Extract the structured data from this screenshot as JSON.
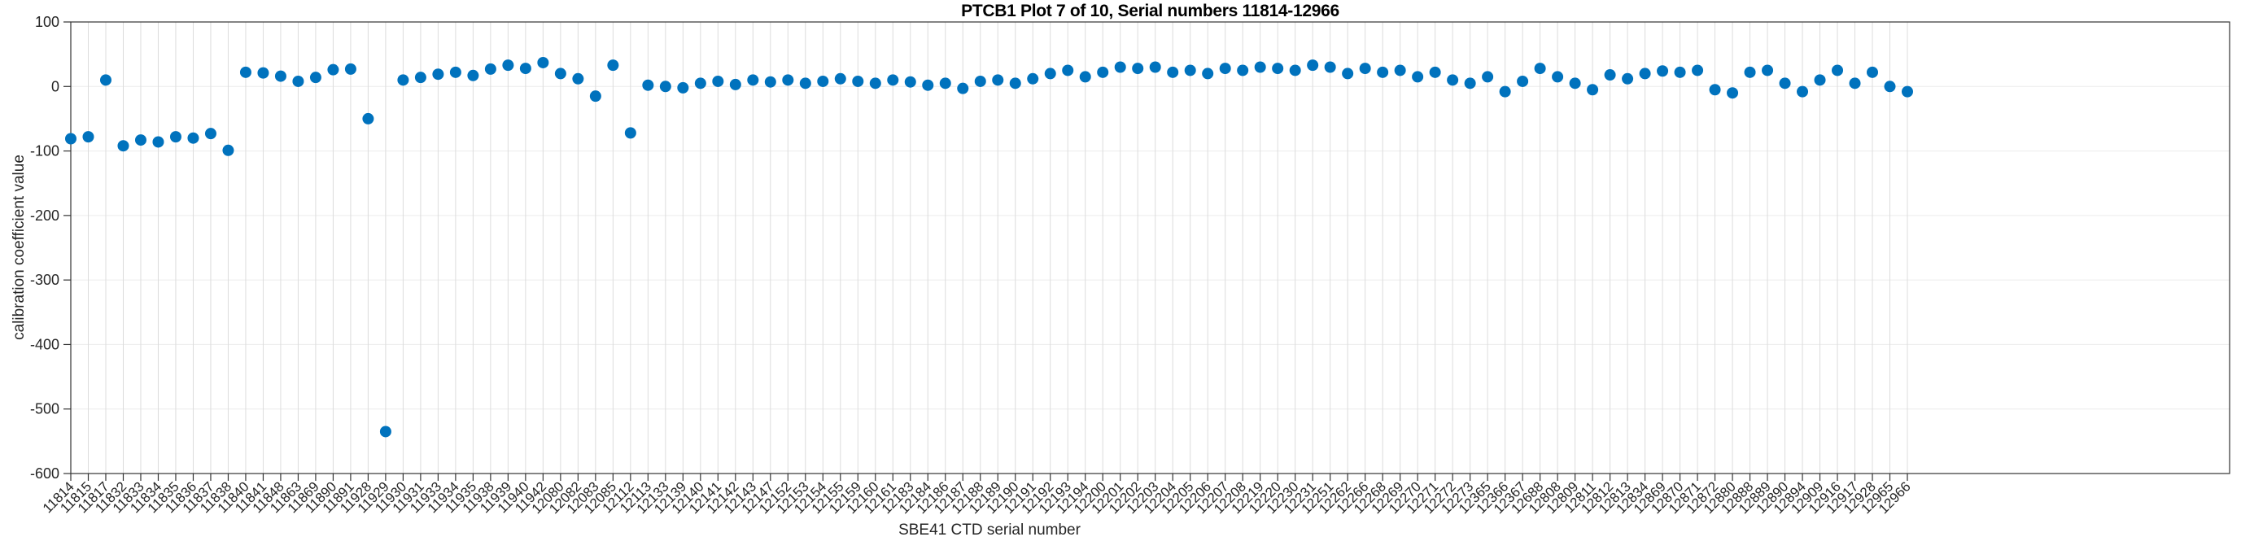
{
  "title": "PTCB1 Plot 7 of 10, Serial numbers 11814-12966",
  "chart_data": {
    "type": "scatter",
    "title": "PTCB1 Plot 7 of 10, Serial numbers 11814-12966",
    "xlabel": "SBE41 CTD serial number",
    "ylabel": "calibration coefficient value",
    "ylim": [
      -600,
      100
    ],
    "yticks": [
      100,
      0,
      -100,
      -200,
      -300,
      -400,
      -500,
      -600
    ],
    "grid": "on",
    "legend": "none",
    "marker_color": "#0072BD",
    "grid_color": "#dcdcdc",
    "axis_color": "#333333",
    "tick_text_color": "#262626",
    "categories": [
      "11814",
      "11815",
      "11817",
      "11832",
      "11833",
      "11834",
      "11835",
      "11836",
      "11837",
      "11838",
      "11840",
      "11841",
      "11848",
      "11863",
      "11869",
      "11890",
      "11891",
      "11928",
      "11929",
      "11930",
      "11931",
      "11933",
      "11934",
      "11935",
      "11938",
      "11939",
      "11940",
      "11942",
      "12080",
      "12082",
      "12083",
      "12085",
      "12112",
      "12113",
      "12133",
      "12139",
      "12140",
      "12141",
      "12142",
      "12143",
      "12147",
      "12152",
      "12153",
      "12154",
      "12155",
      "12159",
      "12160",
      "12161",
      "12183",
      "12184",
      "12186",
      "12187",
      "12188",
      "12189",
      "12190",
      "12191",
      "12192",
      "12193",
      "12194",
      "12200",
      "12201",
      "12202",
      "12203",
      "12204",
      "12205",
      "12206",
      "12207",
      "12208",
      "12219",
      "12220",
      "12230",
      "12231",
      "12251",
      "12262",
      "12266",
      "12268",
      "12269",
      "12270",
      "12271",
      "12272",
      "12273",
      "12365",
      "12366",
      "12367",
      "12688",
      "12808",
      "12809",
      "12811",
      "12812",
      "12813",
      "12834",
      "12869",
      "12870",
      "12871",
      "12872",
      "12880",
      "12888",
      "12889",
      "12890",
      "12894",
      "12909",
      "12916",
      "12917",
      "12928",
      "12965",
      "12966"
    ],
    "values": [
      -81,
      -78,
      10,
      -92,
      -83,
      -86,
      -78,
      -80,
      -73,
      -99,
      22,
      21,
      16,
      8,
      14,
      26,
      27,
      -50,
      -535,
      10,
      14,
      19,
      22,
      17,
      27,
      33,
      28,
      37,
      20,
      12,
      -15,
      33,
      -72,
      2,
      0,
      -2,
      5,
      8,
      3,
      10,
      7,
      10,
      5,
      8,
      12,
      8,
      5,
      10,
      7,
      2,
      5,
      -3,
      8,
      10,
      5,
      12,
      20,
      25,
      15,
      22,
      30,
      28,
      30,
      22,
      25,
      20,
      28,
      25,
      30,
      28,
      25,
      33,
      30,
      20,
      28,
      22,
      25,
      15,
      22,
      10,
      5,
      15,
      -8,
      8,
      28,
      15,
      5,
      -5,
      18,
      12,
      20,
      24,
      22,
      25,
      -5,
      -10,
      22,
      25,
      5,
      -8,
      10,
      25,
      5,
      22,
      0,
      -8
    ]
  }
}
